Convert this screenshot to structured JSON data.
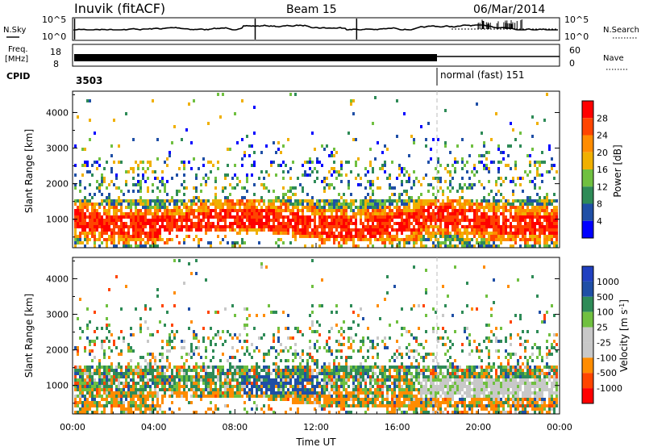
{
  "header": {
    "title": "Inuvik (fitACF)",
    "beam": "Beam 15",
    "date": "06/Mar/2014"
  },
  "noise_panel": {
    "left_label": "N.Sky",
    "right_label": "N.Search",
    "left_ticks": [
      "10^5",
      "10^0"
    ],
    "right_ticks": [
      "10^5",
      "10^0"
    ]
  },
  "freq_panel": {
    "left_label_line1": "Freq.",
    "left_label_line2": "[MHz]",
    "left_ticks": [
      "18",
      "8"
    ],
    "right_label": "Nave",
    "right_ticks": [
      "60",
      "0"
    ]
  },
  "cpid": {
    "label": "CPID",
    "segments": [
      {
        "start_hour": 0,
        "text": "3503"
      },
      {
        "start_hour": 18,
        "text": "normal (fast) 151"
      }
    ]
  },
  "colors": {
    "power": [
      "#0000ff",
      "#1f4fa6",
      "#2e8b57",
      "#70c040",
      "#f0b000",
      "#ff8c00",
      "#ff4500",
      "#ff0000"
    ],
    "velocity": [
      "#ff0000",
      "#ff4500",
      "#ff8c00",
      "#c8c8c8",
      "#c8c8c8",
      "#70c040",
      "#2e8b57",
      "#1f4fa6",
      "#2040c0"
    ]
  },
  "chart_data": [
    {
      "type": "heatmap",
      "name": "power",
      "xlabel": "",
      "ylabel": "Slant Range [km]",
      "xlim": [
        0,
        24
      ],
      "ylim": [
        200,
        4600
      ],
      "yticks": [
        "1000",
        "2000",
        "3000",
        "4000"
      ],
      "colorbar": {
        "label": "Power [dB]",
        "levels": [
          "4",
          "8",
          "12",
          "16",
          "20",
          "24",
          "28"
        ]
      }
    },
    {
      "type": "heatmap",
      "name": "velocity",
      "xlabel": "Time UT",
      "ylabel": "Slant Range [km]",
      "xlim": [
        0,
        24
      ],
      "ylim": [
        200,
        4600
      ],
      "xticks": [
        "00:00",
        "04:00",
        "08:00",
        "12:00",
        "16:00",
        "20:00",
        "00:00"
      ],
      "yticks": [
        "1000",
        "2000",
        "3000",
        "4000"
      ],
      "colorbar": {
        "label": "Velocity [m s^-1]",
        "levels": [
          "1000",
          "500",
          "100",
          "25",
          "-25",
          "-100",
          "-500",
          "-1000"
        ]
      }
    }
  ]
}
